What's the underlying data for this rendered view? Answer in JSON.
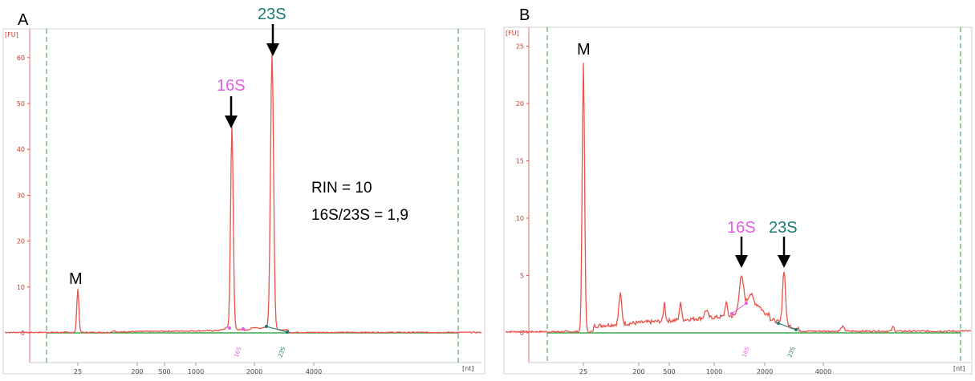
{
  "colors": {
    "trace": "#e8534a",
    "baseline": "#3aa84a",
    "marker_line": "#2e8b3a",
    "label_16S": "#e55be5",
    "label_23S": "#1a7a72",
    "axis_red": "#d9534f",
    "black": "#000000"
  },
  "chart_data": [
    {
      "panel": "A",
      "type": "line",
      "y_unit": "[FU]",
      "x_unit": "[nt]",
      "yticks": [
        0,
        10,
        20,
        30,
        40,
        50,
        60
      ],
      "xticks": [
        "25",
        "200",
        "500",
        "1000",
        "2000",
        "4000"
      ],
      "ylim": [
        -5,
        65
      ],
      "grid": false,
      "annotations": [
        {
          "text": "M",
          "x": "25",
          "y": 9.5
        },
        {
          "text": "16S",
          "x": 1500,
          "y": 45
        },
        {
          "text": "23S",
          "x": 2900,
          "y": 61
        }
      ],
      "peak_markers": [
        "16S",
        "23S"
      ],
      "series": [
        {
          "values_description": "electropherogram",
          "peaks": [
            {
              "x": "25",
              "y": 9.5
            },
            {
              "x": 1500,
              "y": 45
            },
            {
              "x": 2900,
              "y": 61
            }
          ]
        }
      ],
      "notes": [
        "RIN = 10",
        "16S/23S = 1,9"
      ]
    },
    {
      "panel": "B",
      "type": "line",
      "y_unit": "[FU]",
      "x_unit": "[nt]",
      "yticks": [
        0,
        5,
        10,
        15,
        20,
        25
      ],
      "xticks": [
        "25",
        "200",
        "500",
        "1000",
        "2000",
        "4000"
      ],
      "ylim": [
        -2.5,
        26
      ],
      "grid": false,
      "annotations": [
        {
          "text": "M",
          "x": "25",
          "y": 23.5
        },
        {
          "text": "16S",
          "x": 1500,
          "y": 4.8
        },
        {
          "text": "23S",
          "x": 2900,
          "y": 5.1
        }
      ],
      "peak_markers": [
        "16S",
        "23S"
      ],
      "series": [
        {
          "values_description": "electropherogram",
          "peaks": [
            {
              "x": "25",
              "y": 23.5
            },
            {
              "x": 120,
              "y": 2.7
            },
            {
              "x": 1500,
              "y": 4.8
            },
            {
              "x": 2900,
              "y": 5.1
            }
          ]
        }
      ]
    }
  ],
  "panels": {
    "a": {
      "letter": "A",
      "y_unit": "[FU]",
      "x_unit": "[nt]",
      "m_label": "M",
      "label_16s": "16S",
      "label_23s": "23S",
      "rin": "RIN = 10",
      "ratio": "16S/23S = 1,9",
      "marker_16s": "16S",
      "marker_23s": "23S"
    },
    "b": {
      "letter": "B",
      "y_unit": "[FU]",
      "x_unit": "[nt]",
      "m_label": "M",
      "label_16s": "16S",
      "label_23s": "23S",
      "marker_16s": "16S",
      "marker_23s": "23S"
    }
  }
}
